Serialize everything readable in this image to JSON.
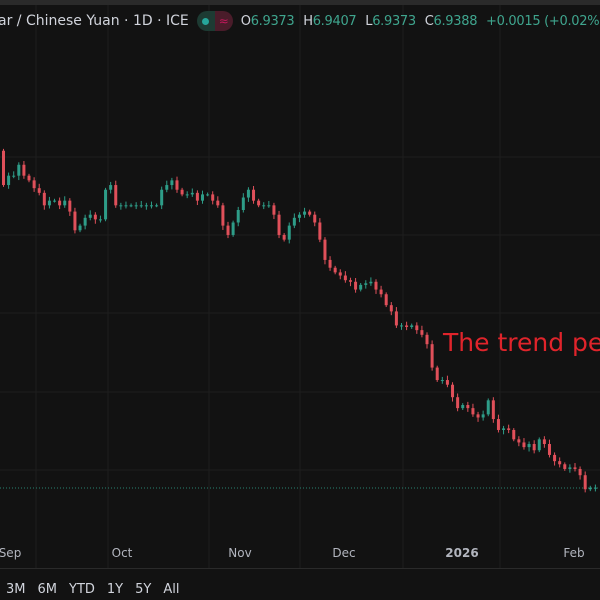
{
  "header": {
    "title": "ar / Chinese Yuan · 1D · ICE",
    "status_icons": [
      "market-open-dot-icon",
      "delayed-data-icon"
    ],
    "ohlc": {
      "o_label": "O",
      "o": "6.9373",
      "h_label": "H",
      "h": "6.9407",
      "l_label": "L",
      "l": "6.9373",
      "c_label": "C",
      "c": "6.9388",
      "change": "+0.0015 (+0.02%)"
    }
  },
  "annotation": "The trend pe",
  "range_buttons": [
    "3M",
    "6M",
    "YTD",
    "1Y",
    "5Y",
    "All"
  ],
  "colors": {
    "up": "#2e9d88",
    "down": "#e0505a",
    "background": "#121212",
    "grid": "#1e1e1e",
    "annotation": "#e0242b"
  },
  "chart_data": {
    "type": "candlestick",
    "x_tick_labels": [
      "Sep",
      "Oct",
      "Nov",
      "Dec",
      "2026",
      "Feb"
    ],
    "last_price": 6.9388,
    "grid": true,
    "first_open": 7.155,
    "closes": [
      7.133,
      7.139,
      7.139,
      7.146,
      7.139,
      7.136,
      7.131,
      7.128,
      7.12,
      7.123,
      7.123,
      7.12,
      7.123,
      7.116,
      7.104,
      7.107,
      7.112,
      7.114,
      7.111,
      7.111,
      7.13,
      7.133,
      7.12,
      7.12,
      7.12,
      7.12,
      7.12,
      7.12,
      7.12,
      7.12,
      7.12,
      7.13,
      7.133,
      7.136,
      7.13,
      7.127,
      7.127,
      7.128,
      7.123,
      7.127,
      7.127,
      7.123,
      7.12,
      7.107,
      7.101,
      7.109,
      7.117,
      7.125,
      7.13,
      7.123,
      7.12,
      7.12,
      7.12,
      7.114,
      7.101,
      7.098,
      7.107,
      7.112,
      7.114,
      7.116,
      7.114,
      7.109,
      7.098,
      7.085,
      7.08,
      7.077,
      7.075,
      7.072,
      7.071,
      7.066,
      7.069,
      7.07,
      7.071,
      7.066,
      7.063,
      7.056,
      7.052,
      7.043,
      7.043,
      7.042,
      7.043,
      7.04,
      7.037,
      7.031,
      7.016,
      7.008,
      7.008,
      7.005,
      6.997,
      6.99,
      6.992,
      6.99,
      6.986,
      6.984,
      6.986,
      6.995,
      6.983,
      6.976,
      6.977,
      6.976,
      6.97,
      6.968,
      6.965,
      6.967,
      6.963,
      6.97,
      6.967,
      6.96,
      6.956,
      6.954,
      6.951,
      6.952,
      6.951,
      6.947,
      6.938,
      6.939,
      6.939
    ]
  }
}
